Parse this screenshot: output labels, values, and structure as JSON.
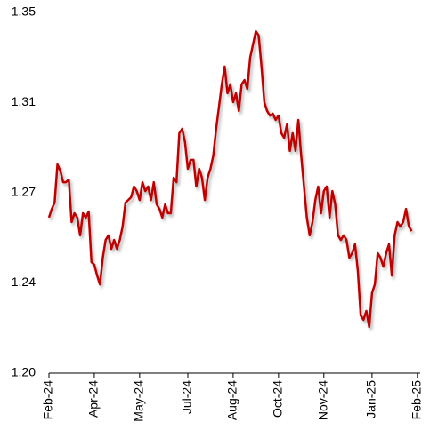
{
  "chart_data": {
    "type": "line",
    "series": [
      {
        "color": "#c00000",
        "values": [
          1.2647,
          1.2683,
          1.2709,
          1.2868,
          1.2842,
          1.2794,
          1.2794,
          1.2805,
          1.2628,
          1.2665,
          1.2647,
          1.2573,
          1.2665,
          1.2647,
          1.2672,
          1.2462,
          1.2451,
          1.2406,
          1.2369,
          1.248,
          1.2554,
          1.2573,
          1.2517,
          1.2554,
          1.2517,
          1.2554,
          1.261,
          1.2709,
          1.272,
          1.2732,
          1.2776,
          1.2757,
          1.272,
          1.2794,
          1.2757,
          1.2776,
          1.272,
          1.2794,
          1.2702,
          1.2683,
          1.2647,
          1.2702,
          1.2665,
          1.2665,
          1.2813,
          1.2794,
          1.2998,
          1.3016,
          1.2961,
          1.285,
          1.2887,
          1.2887,
          1.2776,
          1.285,
          1.2813,
          1.272,
          1.2813,
          1.285,
          1.2905,
          1.3016,
          1.3108,
          1.3201,
          1.3275,
          1.3164,
          1.3201,
          1.3127,
          1.3164,
          1.309,
          1.3201,
          1.3219,
          1.3182,
          1.3312,
          1.3367,
          1.3422,
          1.3404,
          1.3275,
          1.3127,
          1.309,
          1.3071,
          1.3079,
          1.3053,
          1.3071,
          1.2998,
          1.2979,
          1.3035,
          1.2924,
          1.2998,
          1.2924,
          1.3053,
          1.2905,
          1.2776,
          1.2647,
          1.2573,
          1.2628,
          1.272,
          1.2776,
          1.2665,
          1.2757,
          1.2776,
          1.2647,
          1.2757,
          1.2702,
          1.2573,
          1.2554,
          1.2573,
          1.2554,
          1.248,
          1.2499,
          1.2536,
          1.2425,
          1.224,
          1.2222,
          1.2259,
          1.2192,
          1.2333,
          1.2369,
          1.2499,
          1.248,
          1.2443,
          1.2499,
          1.2536,
          1.2406,
          1.2573,
          1.2628,
          1.261,
          1.2628,
          1.2683,
          1.261,
          1.2591
        ]
      }
    ],
    "xlim": [
      0,
      131
    ],
    "xticks": [
      {
        "value": 0,
        "label": "Feb-24"
      },
      {
        "value": 16,
        "label": "Apr-24"
      },
      {
        "value": 32,
        "label": "May-24"
      },
      {
        "value": 49,
        "label": "Jul-24"
      },
      {
        "value": 65,
        "label": "Aug-24"
      },
      {
        "value": 81,
        "label": "Oct-24"
      },
      {
        "value": 97,
        "label": "Nov-24"
      },
      {
        "value": 114,
        "label": "Jan-25"
      },
      {
        "value": 130,
        "label": "Feb-25"
      }
    ],
    "ylim": [
      1.2,
      1.35
    ],
    "yticks": [
      {
        "value": 1.2,
        "label": "1.20"
      },
      {
        "value": 1.2375,
        "label": "1.24"
      },
      {
        "value": 1.275,
        "label": "1.27"
      },
      {
        "value": 1.3125,
        "label": "1.31"
      },
      1.35
    ],
    "grid": false
  }
}
